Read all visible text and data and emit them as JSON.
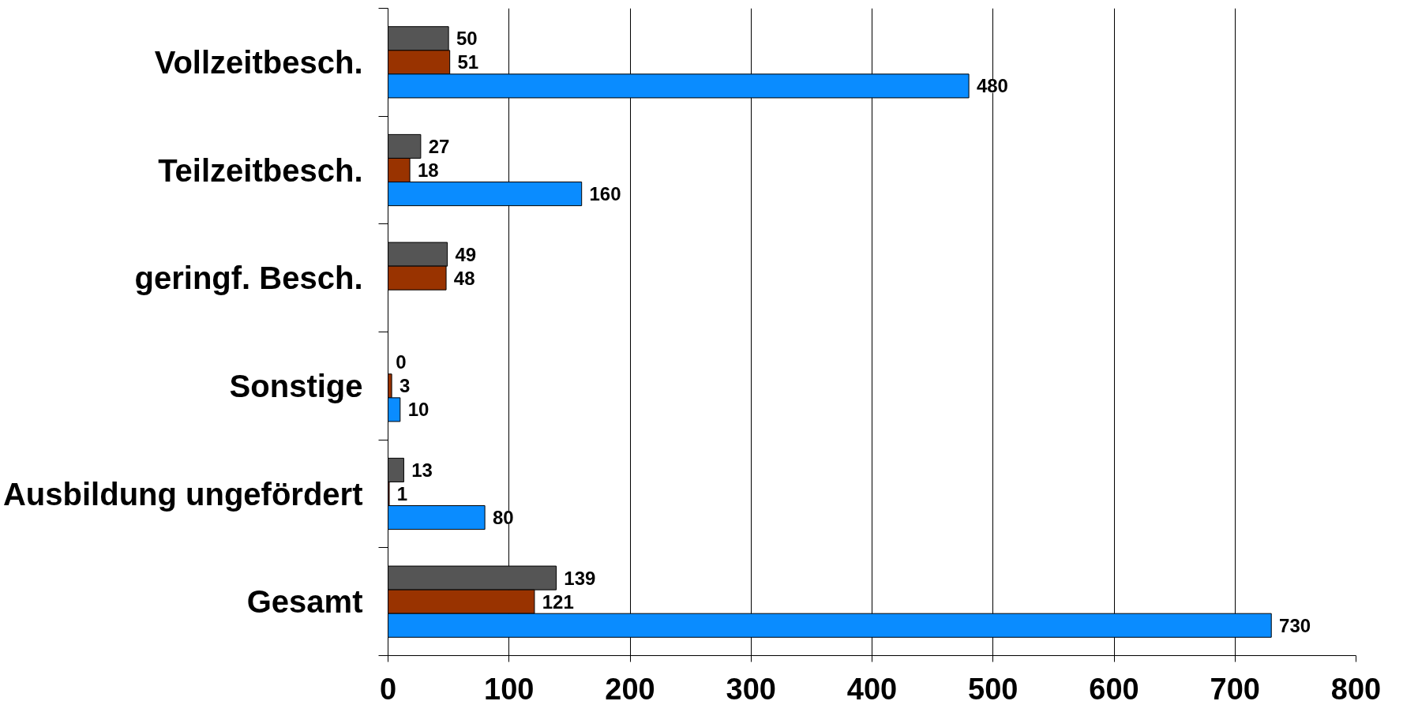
{
  "chart_data": {
    "type": "bar",
    "orientation": "horizontal",
    "categories": [
      "Vollzeitbesch.",
      "Teilzeitbesch.",
      "geringf. Besch.",
      "Sonstige",
      "Ausbildung ungefördert",
      "Gesamt"
    ],
    "series": [
      {
        "color": "#555555",
        "values": [
          50,
          27,
          49,
          0,
          13,
          139
        ]
      },
      {
        "color": "#993300",
        "values": [
          51,
          18,
          48,
          3,
          1,
          121
        ]
      },
      {
        "color": "#0a8cff",
        "values": [
          480,
          160,
          null,
          10,
          80,
          730
        ]
      }
    ],
    "xlim": [
      0,
      800
    ],
    "xticks": [
      0,
      100,
      200,
      300,
      400,
      500,
      600,
      700,
      800
    ],
    "grid": "x",
    "data_labels": true
  }
}
